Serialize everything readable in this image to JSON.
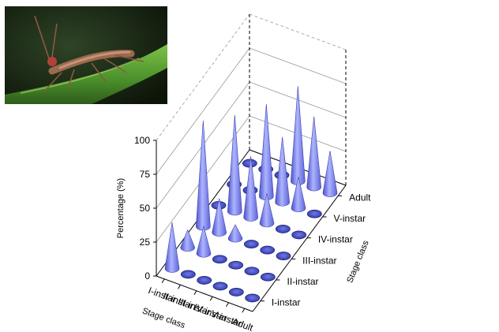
{
  "chart_data": {
    "type": "3d-cone",
    "zlabel": "Percentage (%)",
    "zlim": [
      0,
      100
    ],
    "zticks": [
      "0",
      "25",
      "50",
      "75",
      "100"
    ],
    "xlabel": "Stage class",
    "ylabel": "Stage class",
    "x_categories": [
      "I-instar",
      "II-instar",
      "III-instar",
      "IV-instar",
      "V-instar",
      "Adult"
    ],
    "y_categories": [
      "I-instar",
      "II-instar",
      "III-instar",
      "IV-instar",
      "V-instar",
      "Adult"
    ],
    "grid": true,
    "cone_color": "#7b83e8",
    "values": [
      [
        34,
        0,
        0,
        0,
        0,
        0
      ],
      [
        13,
        20,
        0,
        0,
        0,
        0
      ],
      [
        78,
        25,
        10,
        0,
        0,
        0
      ],
      [
        0,
        71,
        45,
        22,
        0,
        0
      ],
      [
        0,
        0,
        68,
        48,
        23,
        0
      ],
      [
        0,
        0,
        0,
        70,
        52,
        31
      ]
    ],
    "photo_colors": {
      "bg": "#1b2a17",
      "leaf": "#4a8f2a",
      "insect": "#9a6a4e"
    }
  }
}
